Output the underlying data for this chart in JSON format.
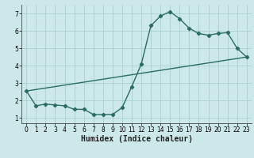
{
  "line1_x": [
    0,
    1,
    2,
    3,
    4,
    5,
    6,
    7,
    8,
    9,
    10,
    11,
    12,
    13,
    14,
    15,
    16,
    17,
    18,
    19,
    20,
    21,
    22,
    23
  ],
  "line1_y": [
    2.55,
    1.7,
    1.8,
    1.75,
    1.7,
    1.5,
    1.5,
    1.2,
    1.2,
    1.2,
    1.6,
    2.8,
    4.1,
    6.3,
    6.85,
    7.1,
    6.7,
    6.15,
    5.85,
    5.75,
    5.85,
    5.9,
    5.0,
    4.5
  ],
  "line2_x": [
    0,
    23
  ],
  "line2_y": [
    2.55,
    4.5
  ],
  "line_color": "#2a6e62",
  "bg_color": "#cce8e8",
  "grid_color": "#aacfcf",
  "xlabel": "Humidex (Indice chaleur)",
  "xlim": [
    -0.5,
    23.5
  ],
  "ylim": [
    0.7,
    7.5
  ],
  "yticks": [
    1,
    2,
    3,
    4,
    5,
    6,
    7
  ],
  "xticks": [
    0,
    1,
    2,
    3,
    4,
    5,
    6,
    7,
    8,
    9,
    10,
    11,
    12,
    13,
    14,
    15,
    16,
    17,
    18,
    19,
    20,
    21,
    22,
    23
  ],
  "marker": "D",
  "markersize": 2.2,
  "linewidth": 1.0,
  "xlabel_fontsize": 7,
  "tick_fontsize": 5.5
}
